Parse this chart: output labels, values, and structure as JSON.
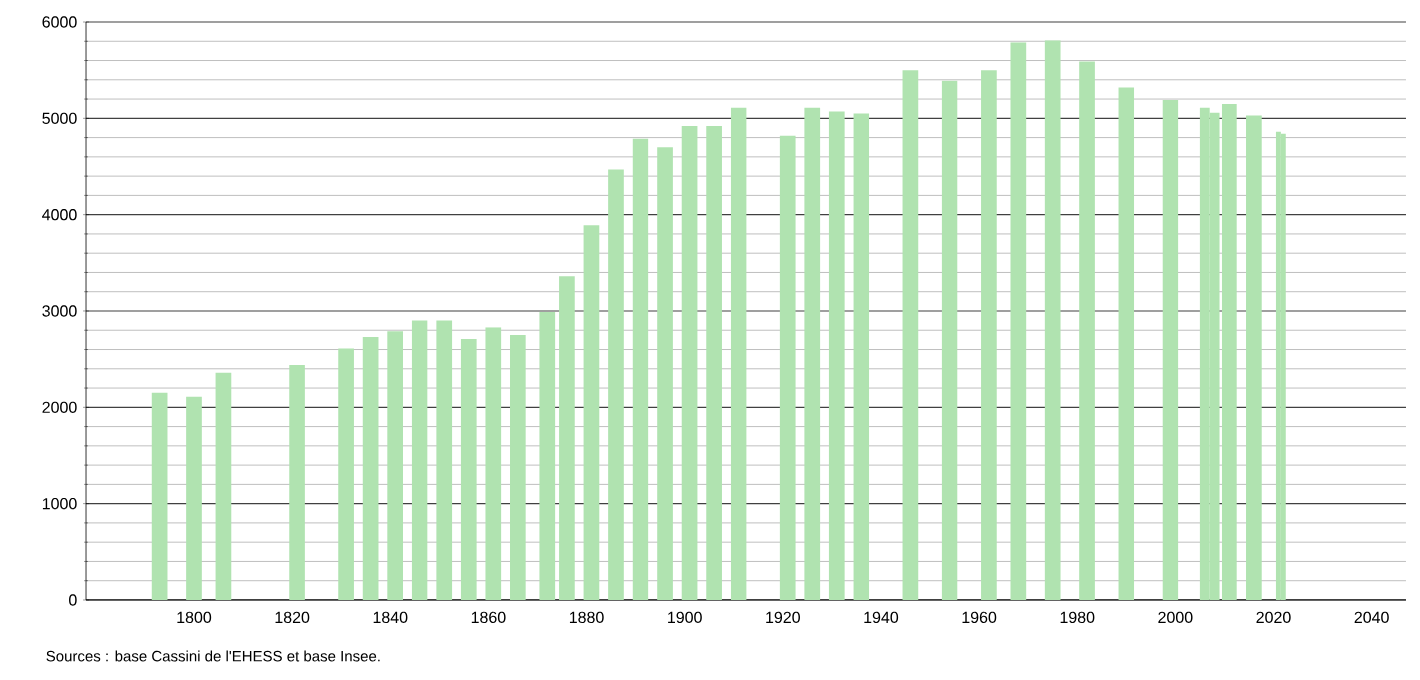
{
  "chart_data": {
    "type": "bar",
    "x": [
      1793,
      1800,
      1806,
      1821,
      1831,
      1836,
      1841,
      1846,
      1851,
      1856,
      1861,
      1866,
      1872,
      1876,
      1881,
      1886,
      1891,
      1896,
      1901,
      1906,
      1911,
      1921,
      1926,
      1931,
      1936,
      1946,
      1954,
      1962,
      1968,
      1975,
      1982,
      1990,
      1999,
      2006,
      2008,
      2011,
      2016,
      2021,
      2022
    ],
    "values": [
      2150,
      2110,
      2360,
      2440,
      2610,
      2730,
      2790,
      2900,
      2900,
      2710,
      2830,
      2750,
      2990,
      3360,
      3890,
      4470,
      4790,
      4700,
      4920,
      4920,
      5110,
      4820,
      5110,
      5070,
      5050,
      5500,
      5390,
      5500,
      5790,
      5810,
      5590,
      5320,
      5190,
      5110,
      5060,
      5150,
      5030,
      4860,
      4840
    ],
    "color": "#b0e3b0",
    "xlim": [
      1778,
      2047
    ],
    "ylim": [
      0,
      6000
    ],
    "xticks": [
      1800,
      1820,
      1840,
      1860,
      1880,
      1900,
      1920,
      1940,
      1960,
      1980,
      2000,
      2020,
      2040
    ],
    "yticks": [
      0,
      1000,
      2000,
      3000,
      4000,
      5000,
      6000
    ],
    "grid": "y",
    "annotations": [
      "Sources : base Cassini de l'EHESS et base Insee."
    ]
  }
}
